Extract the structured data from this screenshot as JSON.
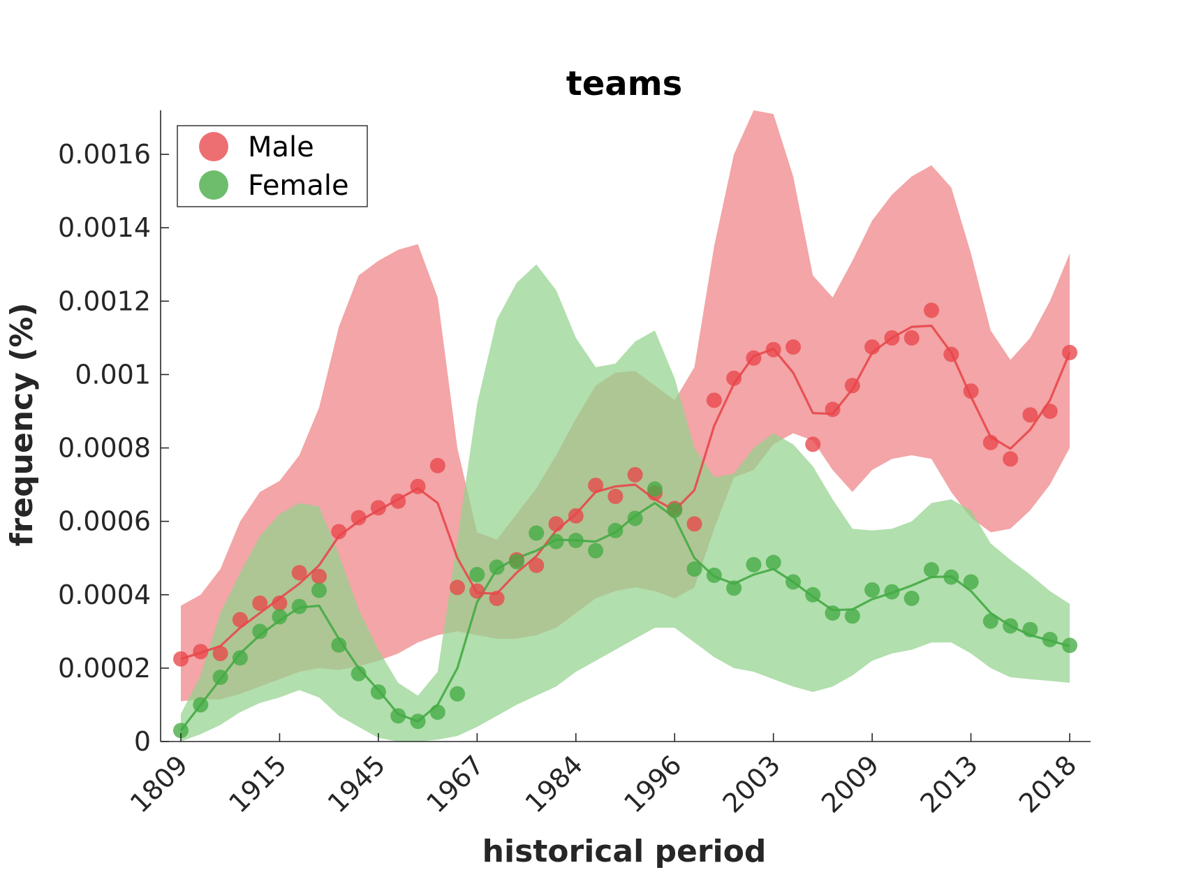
{
  "chart_data": {
    "type": "line",
    "title": "teams",
    "xlabel": "historical period",
    "ylabel": "frequency (%)",
    "x_tick_labels": [
      "1809",
      "1915",
      "1945",
      "1967",
      "1984",
      "1996",
      "2003",
      "2009",
      "2013",
      "2018"
    ],
    "y_ticks": [
      0,
      0.0002,
      0.0004,
      0.0006,
      0.0008,
      0.001,
      0.0012,
      0.0014,
      0.0016
    ],
    "y_tick_labels": [
      "0",
      "0.0002",
      "0.0004",
      "0.0006",
      "0.0008",
      "0.001",
      "0.0012",
      "0.0014",
      "0.0016"
    ],
    "ylim": [
      0,
      0.00172
    ],
    "legend_position": "top-left",
    "grid": false,
    "series": [
      {
        "name": "Male",
        "color": "#E8474A",
        "band_color": "#EE8285",
        "points": [
          0.000225,
          0.000245,
          0.00024,
          0.000332,
          0.000377,
          0.000377,
          0.00046,
          0.00045,
          0.000572,
          0.00061,
          0.000637,
          0.000655,
          0.000695,
          0.000752,
          0.00042,
          0.00041,
          0.00039,
          0.000495,
          0.00048,
          0.000593,
          0.000615,
          0.000698,
          0.000668,
          0.000727,
          0.000677,
          0.000635,
          0.000593,
          0.00093,
          0.00099,
          0.001045,
          0.001068,
          0.001075,
          0.00081,
          0.000905,
          0.00097,
          0.001075,
          0.0011,
          0.0011,
          0.001175,
          0.001055,
          0.000955,
          0.000815,
          0.00077,
          0.00089,
          0.0009,
          0.00106
        ],
        "trend": [
          0.000225,
          0.000242,
          0.00026,
          0.00031,
          0.00035,
          0.00039,
          0.00043,
          0.00048,
          0.00056,
          0.0006,
          0.00063,
          0.00066,
          0.00069,
          0.00065,
          0.0005,
          0.000405,
          0.000403,
          0.00046,
          0.000505,
          0.000575,
          0.00062,
          0.00068,
          0.000695,
          0.0007,
          0.00066,
          0.00063,
          0.000685,
          0.00086,
          0.000975,
          0.00105,
          0.00107,
          0.001005,
          0.000895,
          0.000893,
          0.00096,
          0.00106,
          0.0011,
          0.00113,
          0.001133,
          0.00106,
          0.00094,
          0.00083,
          0.000798,
          0.00085,
          0.00093,
          0.00106
        ],
        "band_upper": [
          0.00037,
          0.0004,
          0.00047,
          0.0006,
          0.00068,
          0.00071,
          0.00078,
          0.00091,
          0.00113,
          0.00127,
          0.00131,
          0.00134,
          0.001355,
          0.00121,
          0.0008,
          0.00057,
          0.00055,
          0.00062,
          0.00069,
          0.00078,
          0.00088,
          0.00097,
          0.001005,
          0.00101,
          0.00097,
          0.00093,
          0.00102,
          0.00135,
          0.0016,
          0.00172,
          0.00171,
          0.00154,
          0.00127,
          0.00121,
          0.00131,
          0.00142,
          0.00149,
          0.00154,
          0.00157,
          0.00151,
          0.00133,
          0.00112,
          0.00104,
          0.0011,
          0.0012,
          0.00133
        ],
        "band_lower": [
          0.00011,
          0.000115,
          0.000115,
          0.00013,
          0.00015,
          0.00017,
          0.00019,
          0.0002,
          0.000195,
          0.000205,
          0.00022,
          0.00024,
          0.00027,
          0.00029,
          0.0003,
          0.00029,
          0.00028,
          0.00028,
          0.00029,
          0.00031,
          0.00035,
          0.00039,
          0.00041,
          0.00042,
          0.00041,
          0.00039,
          0.00042,
          0.00058,
          0.00072,
          0.00074,
          0.00081,
          0.00084,
          0.00082,
          0.00074,
          0.00068,
          0.00074,
          0.00077,
          0.00078,
          0.00077,
          0.00068,
          0.00061,
          0.00057,
          0.00058,
          0.00063,
          0.0007,
          0.0008
        ]
      },
      {
        "name": "Female",
        "color": "#44AA44",
        "band_color": "#93D38E",
        "points": [
          3e-05,
          0.0001,
          0.000175,
          0.000228,
          0.0003,
          0.00034,
          0.000368,
          0.000412,
          0.000263,
          0.000185,
          0.000135,
          7e-05,
          5.5e-05,
          8e-05,
          0.00013,
          0.000455,
          0.000475,
          0.00049,
          0.000568,
          0.000545,
          0.000548,
          0.00052,
          0.000575,
          0.000608,
          0.000688,
          0.00063,
          0.00047,
          0.000453,
          0.000418,
          0.000482,
          0.000488,
          0.000435,
          0.0004,
          0.00035,
          0.000342,
          0.000413,
          0.000408,
          0.00039,
          0.000468,
          0.000448,
          0.000435,
          0.000328,
          0.000315,
          0.000305,
          0.000278,
          0.000262
        ],
        "trend": [
          3e-05,
          0.0001,
          0.00017,
          0.00024,
          0.00029,
          0.00033,
          0.000365,
          0.00037,
          0.00028,
          0.0002,
          0.00014,
          7.5e-05,
          5.5e-05,
          0.0001,
          0.0002,
          0.00038,
          0.00047,
          0.0005,
          0.00052,
          0.00055,
          0.000548,
          0.000545,
          0.00057,
          0.000615,
          0.00065,
          0.00061,
          0.0005,
          0.00045,
          0.00043,
          0.000455,
          0.00047,
          0.000435,
          0.000395,
          0.000358,
          0.00036,
          0.000388,
          0.000405,
          0.000425,
          0.000448,
          0.00045,
          0.00041,
          0.00035,
          0.000315,
          0.00029,
          0.000275,
          0.00026
        ],
        "band_upper": [
          7.5e-05,
          0.00018,
          0.00035,
          0.00046,
          0.00056,
          0.00062,
          0.00065,
          0.00064,
          0.00051,
          0.00036,
          0.00025,
          0.00016,
          0.000125,
          0.00019,
          0.00055,
          0.00092,
          0.00115,
          0.00125,
          0.0013,
          0.00123,
          0.0011,
          0.00102,
          0.00103,
          0.00109,
          0.00112,
          0.00099,
          0.0008,
          0.00072,
          0.00073,
          0.0008,
          0.00084,
          0.00081,
          0.00075,
          0.00066,
          0.00058,
          0.000575,
          0.00058,
          0.0006,
          0.00065,
          0.00066,
          0.00063,
          0.00054,
          0.000495,
          0.000455,
          0.00041,
          0.000375
        ],
        "band_lower": [
          0.0,
          2e-05,
          4.5e-05,
          8e-05,
          0.000105,
          0.00012,
          0.00014,
          0.00012,
          7e-05,
          4e-05,
          1e-05,
          0.0,
          0.0,
          5e-06,
          1.5e-05,
          4e-05,
          7e-05,
          0.0001,
          0.000125,
          0.00015,
          0.00019,
          0.00022,
          0.00025,
          0.00028,
          0.00031,
          0.00031,
          0.00027,
          0.00023,
          0.0002,
          0.00019,
          0.00017,
          0.00015,
          0.000135,
          0.00015,
          0.00018,
          0.00022,
          0.00024,
          0.00025,
          0.00027,
          0.00027,
          0.00024,
          0.0002,
          0.000175,
          0.00017,
          0.000165,
          0.00016
        ]
      }
    ]
  }
}
